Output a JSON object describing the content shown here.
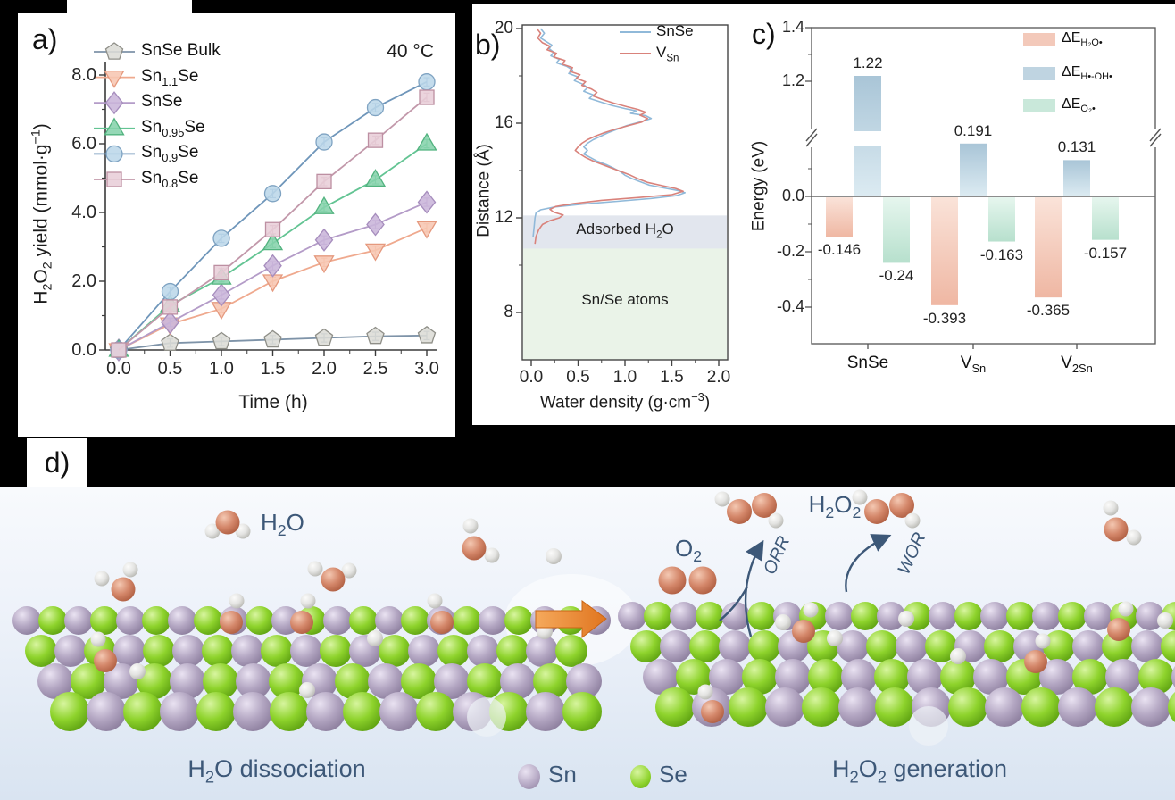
{
  "figure": {
    "panel_a_label": "a)",
    "panel_b_label": "b)",
    "panel_c_label": "c)",
    "panel_d_label": "d)"
  },
  "chart_data": [
    {
      "id": "a",
      "type": "line",
      "annotation": "40 °C",
      "xlabel": "Time (h)",
      "ylabel": "H~2~O~2~ yield (mmol·g^−1^)",
      "x": [
        0,
        0.5,
        1.0,
        1.5,
        2.0,
        2.5,
        3.0
      ],
      "xtick_labels": [
        "0.0",
        "0.5",
        "1.0",
        "1.5",
        "2.0",
        "2.5",
        "3.0"
      ],
      "ytick_values": [
        0,
        2,
        4,
        6,
        8
      ],
      "ytick_labels": [
        "0.0",
        "2.0",
        "4.0",
        "6.0",
        "8.0"
      ],
      "xlim": [
        0,
        3
      ],
      "ylim": [
        0,
        8.4
      ],
      "error_bar": 0.12,
      "legend_position": "upper-left",
      "series": [
        {
          "name": "SnSe Bulk",
          "marker": "pentagon",
          "line_color": "#7e93a8",
          "fill_color": "#dcdcd6",
          "edge_color": "#8f8f88",
          "values": [
            0,
            0.2,
            0.25,
            0.3,
            0.35,
            0.4,
            0.42
          ]
        },
        {
          "name": "Sn~1.1~Se",
          "marker": "triangle-down",
          "line_color": "#efa98e",
          "fill_color": "#f7c6b2",
          "edge_color": "#e5997e",
          "values": [
            0,
            0.75,
            1.2,
            2.0,
            2.55,
            2.9,
            3.55
          ]
        },
        {
          "name": "SnSe",
          "marker": "diamond",
          "line_color": "#b49cc8",
          "fill_color": "#cab5da",
          "edge_color": "#a68dbd",
          "values": [
            0,
            0.8,
            1.6,
            2.45,
            3.2,
            3.65,
            4.3
          ]
        },
        {
          "name": "Sn~0.95~Se",
          "marker": "triangle-up",
          "line_color": "#63c493",
          "fill_color": "#86d3ac",
          "edge_color": "#52b37f",
          "values": [
            0,
            1.3,
            2.1,
            3.1,
            4.15,
            4.95,
            6.0
          ]
        },
        {
          "name": "Sn~0.9~Se",
          "marker": "circle",
          "line_color": "#6f96ba",
          "fill_color": "#bcd7e9",
          "edge_color": "#7fa3c2",
          "values": [
            0,
            1.7,
            3.25,
            4.55,
            6.05,
            7.05,
            7.8
          ]
        },
        {
          "name": "Sn~0.8~Se",
          "marker": "square",
          "line_color": "#c298aa",
          "fill_color": "#e8ced8",
          "edge_color": "#bd8fa2",
          "values": [
            0,
            1.25,
            2.25,
            3.5,
            4.9,
            6.1,
            7.35
          ]
        }
      ]
    },
    {
      "id": "b",
      "type": "line",
      "xlabel": "Water density (g·cm^−3^)",
      "ylabel": "Distance (Å)",
      "xtick_labels": [
        "0.0",
        "0.5",
        "1.0",
        "1.5",
        "2.0"
      ],
      "xtick_values": [
        0,
        0.5,
        1.0,
        1.5,
        2.0
      ],
      "ytick_values": [
        8,
        12,
        16,
        20
      ],
      "ytick_labels": [
        "8",
        "12",
        "16",
        "20"
      ],
      "xlim": [
        0,
        2
      ],
      "ylim": [
        6,
        20
      ],
      "legend_position": "upper-right",
      "regions": [
        {
          "label": "Adsorbed H~2~O",
          "from": 10.7,
          "to": 12.1,
          "color": "#e2e6ee"
        },
        {
          "label": "Sn/Se atoms",
          "from": 6,
          "to": 10.7,
          "color": "#eaf3e8"
        }
      ],
      "series": [
        {
          "name": "SnSe",
          "color": "#90b9d9",
          "points": [
            [
              0.1,
              20.0
            ],
            [
              0.14,
              19.8
            ],
            [
              0.1,
              19.6
            ],
            [
              0.16,
              19.45
            ],
            [
              0.22,
              19.3
            ],
            [
              0.19,
              19.15
            ],
            [
              0.24,
              19.0
            ],
            [
              0.21,
              18.85
            ],
            [
              0.3,
              18.7
            ],
            [
              0.27,
              18.55
            ],
            [
              0.38,
              18.4
            ],
            [
              0.44,
              18.25
            ],
            [
              0.4,
              18.1
            ],
            [
              0.5,
              17.95
            ],
            [
              0.46,
              17.8
            ],
            [
              0.55,
              17.65
            ],
            [
              0.6,
              17.5
            ],
            [
              0.56,
              17.35
            ],
            [
              0.66,
              17.2
            ],
            [
              0.62,
              17.05
            ],
            [
              0.74,
              16.9
            ],
            [
              0.86,
              16.75
            ],
            [
              1.0,
              16.62
            ],
            [
              1.12,
              16.52
            ],
            [
              1.06,
              16.42
            ],
            [
              1.22,
              16.32
            ],
            [
              1.28,
              16.2
            ],
            [
              1.16,
              16.05
            ],
            [
              1.02,
              15.9
            ],
            [
              0.92,
              15.75
            ],
            [
              0.82,
              15.6
            ],
            [
              0.74,
              15.45
            ],
            [
              0.66,
              15.3
            ],
            [
              0.6,
              15.15
            ],
            [
              0.56,
              15.0
            ],
            [
              0.6,
              14.85
            ],
            [
              0.56,
              14.7
            ],
            [
              0.63,
              14.55
            ],
            [
              0.7,
              14.4
            ],
            [
              0.8,
              14.25
            ],
            [
              0.88,
              14.1
            ],
            [
              0.95,
              13.95
            ],
            [
              1.0,
              13.8
            ],
            [
              1.08,
              13.65
            ],
            [
              1.18,
              13.5
            ],
            [
              1.26,
              13.38
            ],
            [
              1.42,
              13.26
            ],
            [
              1.56,
              13.16
            ],
            [
              1.64,
              13.06
            ],
            [
              1.55,
              12.94
            ],
            [
              1.28,
              12.82
            ],
            [
              0.92,
              12.7
            ],
            [
              0.55,
              12.58
            ],
            [
              0.25,
              12.46
            ],
            [
              0.1,
              12.34
            ],
            [
              0.05,
              12.2
            ],
            [
              0.04,
              12.0
            ],
            [
              0.03,
              11.6
            ],
            [
              0.02,
              11.2
            ]
          ]
        },
        {
          "name": "V~Sn~",
          "color": "#d9827b",
          "points": [
            [
              0.06,
              20.0
            ],
            [
              0.1,
              19.8
            ],
            [
              0.07,
              19.6
            ],
            [
              0.12,
              19.4
            ],
            [
              0.2,
              19.25
            ],
            [
              0.17,
              19.1
            ],
            [
              0.27,
              18.95
            ],
            [
              0.24,
              18.8
            ],
            [
              0.36,
              18.65
            ],
            [
              0.33,
              18.5
            ],
            [
              0.44,
              18.35
            ],
            [
              0.41,
              18.2
            ],
            [
              0.52,
              18.05
            ],
            [
              0.48,
              17.9
            ],
            [
              0.58,
              17.75
            ],
            [
              0.54,
              17.6
            ],
            [
              0.64,
              17.45
            ],
            [
              0.7,
              17.3
            ],
            [
              0.66,
              17.15
            ],
            [
              0.76,
              17.0
            ],
            [
              0.88,
              16.85
            ],
            [
              1.02,
              16.7
            ],
            [
              1.14,
              16.58
            ],
            [
              1.22,
              16.46
            ],
            [
              1.16,
              16.34
            ],
            [
              1.24,
              16.2
            ],
            [
              1.18,
              16.05
            ],
            [
              1.04,
              15.9
            ],
            [
              0.9,
              15.75
            ],
            [
              0.78,
              15.6
            ],
            [
              0.68,
              15.45
            ],
            [
              0.6,
              15.3
            ],
            [
              0.54,
              15.15
            ],
            [
              0.5,
              15.0
            ],
            [
              0.47,
              14.85
            ],
            [
              0.52,
              14.7
            ],
            [
              0.58,
              14.55
            ],
            [
              0.66,
              14.4
            ],
            [
              0.76,
              14.25
            ],
            [
              0.86,
              14.1
            ],
            [
              0.96,
              13.95
            ],
            [
              1.06,
              13.8
            ],
            [
              1.14,
              13.65
            ],
            [
              1.24,
              13.5
            ],
            [
              1.4,
              13.36
            ],
            [
              1.54,
              13.24
            ],
            [
              1.62,
              13.12
            ],
            [
              1.5,
              12.98
            ],
            [
              1.15,
              12.86
            ],
            [
              0.75,
              12.74
            ],
            [
              0.45,
              12.6
            ],
            [
              0.26,
              12.48
            ],
            [
              0.2,
              12.36
            ],
            [
              0.24,
              12.24
            ],
            [
              0.34,
              12.12
            ],
            [
              0.3,
              12.0
            ],
            [
              0.2,
              11.88
            ],
            [
              0.12,
              11.72
            ],
            [
              0.08,
              11.5
            ],
            [
              0.05,
              11.2
            ],
            [
              0.04,
              10.9
            ]
          ]
        }
      ]
    },
    {
      "id": "c",
      "type": "bar",
      "ylabel": "Energy (eV)",
      "categories": [
        "SnSe",
        "V~Sn~",
        "V~2Sn~"
      ],
      "ytick_lower": {
        "values": [
          -0.4,
          -0.2,
          0.0
        ],
        "labels": [
          "-0.4",
          "-0.2",
          "0.0"
        ]
      },
      "ytick_upper": {
        "values": [
          1.2,
          1.4
        ],
        "labels": [
          "1.2",
          "1.4"
        ]
      },
      "axis_break_range": [
        0.21,
        0.96
      ],
      "legend_position": "upper-right",
      "series": [
        {
          "name": "ΔE~H₂O•~",
          "color": "#efb7a3",
          "color_light": "#fae3d9",
          "values": [
            -0.146,
            -0.393,
            -0.365
          ]
        },
        {
          "name": "ΔE~H•-OH•~",
          "color": "#a9c5d7",
          "color_light": "#dcebf2",
          "values": [
            1.22,
            0.191,
            0.131
          ]
        },
        {
          "name": "ΔE~O₂•~",
          "color": "#b7e0cd",
          "color_light": "#e6f6ee",
          "values": [
            -0.24,
            -0.163,
            -0.157
          ]
        }
      ]
    }
  ],
  "panel_d": {
    "h2o_label": "H~2~O",
    "o2_label": "O~2~",
    "h2o2_label": "H~2~O~2~",
    "orr_label": "ORR",
    "wor_label": "WOR",
    "left_caption": "H~2~O dissociation",
    "right_caption": "H~2~O~2~ generation",
    "legend": [
      {
        "name": "Sn"
      },
      {
        "name": "Se"
      }
    ],
    "atom_colors": {
      "Sn": "#b3a6c2",
      "Se": "#8ed32c",
      "O": "#d4876a",
      "H": "#e4e4e2"
    }
  }
}
